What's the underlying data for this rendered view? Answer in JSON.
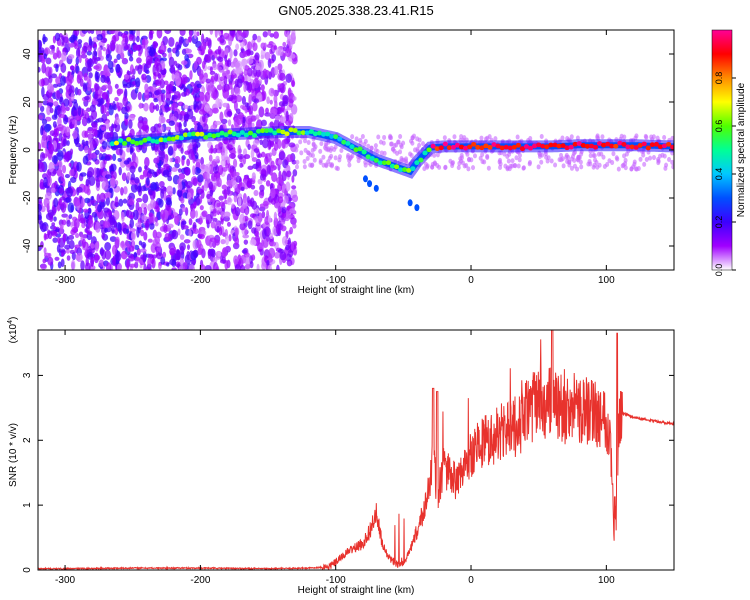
{
  "title": "GN05.2025.338.23.41.R15",
  "chart_data": [
    {
      "type": "heatmap",
      "xlabel": "Height of straight line (km)",
      "ylabel": "Frequency (Hz)",
      "xlim": [
        -320,
        150
      ],
      "ylim": [
        -50,
        50
      ],
      "xticks": [
        -300,
        -200,
        -100,
        0,
        100
      ],
      "yticks": [
        -40,
        -20,
        0,
        20,
        40
      ],
      "grid": false,
      "colorbar": {
        "label": "Normalized spectral amplitude",
        "range": [
          0.0,
          1.0
        ],
        "ticks": [
          0.0,
          0.2,
          0.4,
          0.6,
          0.8
        ],
        "tick_labels": [
          "0.0",
          "0.2",
          "0.4",
          "0.6",
          "0.8"
        ],
        "colormap": [
          "#ffffff",
          "#a000ff",
          "#3c00ff",
          "#0050ff",
          "#00c8ff",
          "#00ff96",
          "#50ff00",
          "#ffff00",
          "#ff8c00",
          "#ff0000",
          "#ff0096"
        ]
      },
      "ridge": {
        "x": [
          -265,
          -240,
          -220,
          -200,
          -180,
          -160,
          -140,
          -120,
          -100,
          -90,
          -80,
          -70,
          -60,
          -50,
          -45,
          -40,
          -35,
          -30,
          -20,
          -10,
          0,
          20,
          40,
          60,
          80,
          100,
          120,
          150
        ],
        "y": [
          3,
          4,
          5,
          6,
          6.5,
          7,
          7.5,
          7.5,
          5,
          2,
          -1,
          -4,
          -6,
          -8,
          -9,
          -5,
          -2,
          1,
          1.5,
          1.5,
          1.5,
          1.5,
          1.5,
          1.5,
          2,
          2,
          2,
          1.5
        ]
      }
    },
    {
      "type": "line",
      "xlabel": "Height of straight line (km)",
      "ylabel": "SNR (10 * v/v)",
      "y_multiplier": "(x10^4)",
      "xlim": [
        -320,
        150
      ],
      "ylim": [
        0,
        3.7
      ],
      "xticks": [
        -300,
        -200,
        -100,
        0,
        100
      ],
      "yticks": [
        0,
        1,
        2,
        3
      ],
      "grid": false,
      "color": "#e8322d",
      "series": [
        {
          "x": [
            -320,
            -300,
            -250,
            -200,
            -150,
            -120,
            -105,
            -100,
            -90,
            -80,
            -75,
            -70,
            -65,
            -60,
            -55,
            -50,
            -45,
            -40,
            -35,
            -30,
            -28,
            -25,
            -20,
            -15,
            -10,
            -5,
            0,
            5,
            10,
            20,
            30,
            35,
            40,
            45,
            50,
            55,
            60,
            65,
            70,
            75,
            80,
            85,
            90,
            95,
            100,
            103,
            105,
            107,
            108,
            110,
            115,
            120,
            130,
            140,
            150
          ],
          "y": [
            0.02,
            0.02,
            0.03,
            0.03,
            0.02,
            0.03,
            0.05,
            0.12,
            0.3,
            0.4,
            0.6,
            0.85,
            0.35,
            0.18,
            0.1,
            0.07,
            0.3,
            0.6,
            0.9,
            1.4,
            1.8,
            1.1,
            1.6,
            1.5,
            1.3,
            1.6,
            1.8,
            1.9,
            2.0,
            2.1,
            2.2,
            2.2,
            2.4,
            2.5,
            2.6,
            2.4,
            2.7,
            2.5,
            2.4,
            2.5,
            2.5,
            2.45,
            2.45,
            2.4,
            2.35,
            2.0,
            1.1,
            0.6,
            1.6,
            2.4,
            2.4,
            2.35,
            2.32,
            2.28,
            2.25
          ]
        }
      ]
    }
  ]
}
